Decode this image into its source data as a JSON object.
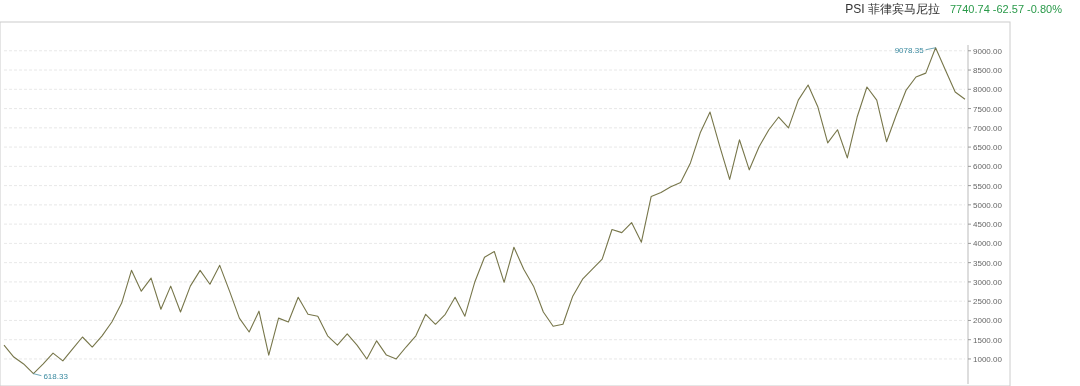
{
  "chart_data": {
    "type": "line",
    "title": "PSI 菲律宾马尼拉",
    "subtitle": "7740.74 -62.57 -0.80%",
    "categories": [
      null,
      null,
      null,
      null,
      null,
      null,
      null,
      null,
      null,
      null,
      null,
      null,
      null,
      null,
      null,
      null,
      null,
      null,
      null,
      null,
      null,
      null,
      null,
      null,
      null,
      null,
      null,
      null,
      null,
      null,
      null,
      null,
      null,
      null,
      null,
      null,
      null,
      null,
      null,
      null,
      null,
      null,
      null,
      null,
      null,
      null,
      null,
      null,
      null,
      null,
      null,
      null,
      null,
      null,
      null,
      null,
      null,
      null,
      null,
      null,
      null,
      null,
      null,
      null,
      null,
      null,
      null,
      null,
      null,
      null,
      null,
      null,
      null,
      null,
      null,
      null,
      null,
      null,
      null,
      null,
      null,
      null,
      null,
      null,
      null,
      null,
      null,
      null,
      null,
      null,
      null,
      null,
      null,
      null,
      null,
      null,
      null,
      null,
      null
    ],
    "series": [
      {
        "color": "#77764a",
        "values": [
          1360,
          1050,
          870,
          618.33,
          870,
          1150,
          950,
          1260,
          1570,
          1310,
          1600,
          1960,
          2450,
          3300,
          2760,
          3100,
          2290,
          2890,
          2220,
          2890,
          3300,
          2940,
          3430,
          2760,
          2060,
          1700,
          2240,
          1100,
          2060,
          1960,
          2600,
          2160,
          2110,
          1600,
          1360,
          1650,
          1360,
          1000,
          1470,
          1100,
          1000,
          1310,
          1600,
          2160,
          1900,
          2160,
          2600,
          2110,
          2990,
          3640,
          3790,
          2990,
          3900,
          3330,
          2890,
          2220,
          1850,
          1900,
          2630,
          3070,
          3330,
          3590,
          4360,
          4280,
          4540,
          4030,
          5220,
          5320,
          5470,
          5580,
          6090,
          6870,
          7410,
          6510,
          5660,
          6690,
          5910,
          6510,
          6950,
          7280,
          7000,
          7720,
          8110,
          7540,
          6610,
          6950,
          6220,
          7280,
          8060,
          7720,
          6640,
          7340,
          7980,
          8320,
          8420,
          9078.35,
          8500,
          7930,
          7740.74
        ]
      }
    ],
    "ylim": [
      350,
      9150
    ],
    "yticks": [
      {
        "value": 1000,
        "label": "1000.00"
      },
      {
        "value": 1500,
        "label": "1500.00"
      },
      {
        "value": 2000,
        "label": "2000.00"
      },
      {
        "value": 2500,
        "label": "2500.00"
      },
      {
        "value": 3000,
        "label": "3000.00"
      },
      {
        "value": 3500,
        "label": "3500.00"
      },
      {
        "value": 4000,
        "label": "4000.00"
      },
      {
        "value": 4500,
        "label": "4500.00"
      },
      {
        "value": 5000,
        "label": "5000.00"
      },
      {
        "value": 5500,
        "label": "5500.00"
      },
      {
        "value": 6000,
        "label": "6000.00"
      },
      {
        "value": 6500,
        "label": "6500.00"
      },
      {
        "value": 7000,
        "label": "7000.00"
      },
      {
        "value": 7500,
        "label": "7500.00"
      },
      {
        "value": 8000,
        "label": "8000.00"
      },
      {
        "value": 8500,
        "label": "8500.00"
      },
      {
        "value": 9000,
        "label": "9000.00"
      }
    ],
    "grid": "y",
    "line_style": "solid",
    "marker": "none",
    "tick_labels": "y",
    "annotations": [
      "9078.35",
      "618.33"
    ]
  }
}
